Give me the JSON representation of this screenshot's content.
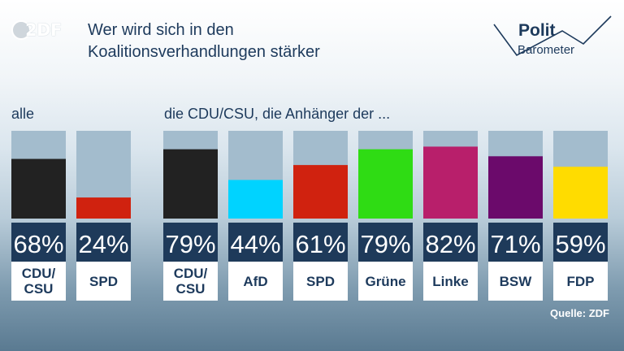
{
  "header": {
    "logo_text": "2DF",
    "title_line1": "Wer wird sich in den",
    "title_line2": "Koalitionsverhandlungen stärker",
    "brand_line1": "Polit",
    "brand_line2": "Barometer"
  },
  "sections": {
    "all_label": "alle",
    "supporters_label": "die CDU/CSU, die Anhänger der ..."
  },
  "source": "Quelle: ZDF",
  "colors": {
    "track": "#a3bccd",
    "value_panel": "#1e3a5a",
    "value_text": "#ffffff",
    "label_panel": "#ffffff",
    "label_text": "#1d3a5c"
  },
  "chart_data": {
    "type": "bar",
    "unit": "%",
    "ylim": [
      0,
      100
    ],
    "groups": [
      {
        "group": "alle",
        "categories": [
          {
            "label": "CDU/\nCSU",
            "value": 68,
            "display": "68%",
            "color": "#222222"
          },
          {
            "label": "SPD",
            "value": 24,
            "display": "24%",
            "color": "#d0220f"
          }
        ]
      },
      {
        "group": "die CDU/CSU, die Anhänger der ...",
        "categories": [
          {
            "label": "CDU/\nCSU",
            "value": 79,
            "display": "79%",
            "color": "#222222"
          },
          {
            "label": "AfD",
            "value": 44,
            "display": "44%",
            "color": "#00d3ff"
          },
          {
            "label": "SPD",
            "value": 61,
            "display": "61%",
            "color": "#d0220f"
          },
          {
            "label": "Grüne",
            "value": 79,
            "display": "79%",
            "color": "#2fdc14"
          },
          {
            "label": "Linke",
            "value": 82,
            "display": "82%",
            "color": "#b81f6b"
          },
          {
            "label": "BSW",
            "value": 71,
            "display": "71%",
            "color": "#6b0a6b"
          },
          {
            "label": "FDP",
            "value": 59,
            "display": "59%",
            "color": "#ffdc00"
          }
        ]
      }
    ]
  }
}
